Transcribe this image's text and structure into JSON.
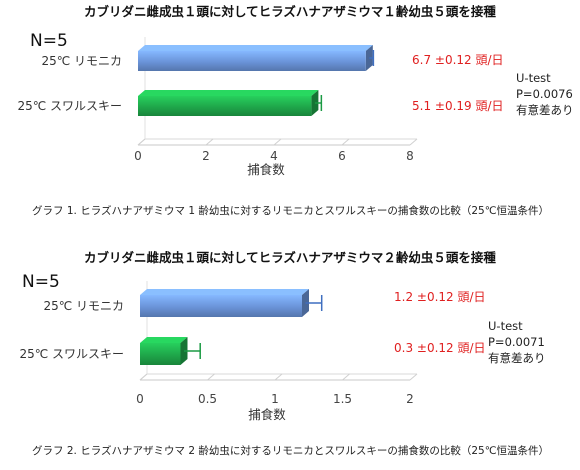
{
  "chart_data": [
    {
      "type": "bar",
      "orientation": "horizontal",
      "title": "カブリダニ雌成虫１頭に対してヒラズハナアザミウマ１齢幼虫５頭を接種",
      "n_label": "N=5",
      "categories": [
        "25℃ リモニカ",
        "25℃ スワルスキー"
      ],
      "values": [
        6.7,
        5.1
      ],
      "errors": [
        0.12,
        0.19
      ],
      "value_labels": [
        "6.7 ±0.12 頭/日",
        "5.1 ±0.19 頭/日"
      ],
      "colors": [
        "#6a93d8",
        "#1fa64a"
      ],
      "xlabel": "捕食数",
      "xlim": [
        0,
        8
      ],
      "xticks": [
        "0",
        "2",
        "4",
        "6",
        "8"
      ],
      "grid": false,
      "stats": [
        "U-test",
        "P=0.0076",
        "有意差あり"
      ],
      "caption": "グラフ 1. ヒラズハナアザミウマ 1 齢幼虫に対するリモニカとスワルスキーの捕食数の比較（25℃恒温条件）"
    },
    {
      "type": "bar",
      "orientation": "horizontal",
      "title": "カブリダニ雌成虫１頭に対してヒラズハナアザミウマ２齢幼虫５頭を接種",
      "n_label": "N=5",
      "categories": [
        "25℃ リモニカ",
        "25℃ スワルスキー"
      ],
      "values": [
        1.2,
        0.3
      ],
      "errors": [
        0.12,
        0.12
      ],
      "value_labels": [
        "1.2 ±0.12 頭/日",
        "0.3 ±0.12 頭/日"
      ],
      "colors": [
        "#6a93d8",
        "#1fa64a"
      ],
      "xlabel": "捕食数",
      "xlim": [
        0,
        2
      ],
      "xticks": [
        "0",
        "0.5",
        "1",
        "1.5",
        "2"
      ],
      "grid": false,
      "stats": [
        "U-test",
        "P=0.0071",
        "有意差あり"
      ],
      "caption": "グラフ 2. ヒラズハナアザミウマ 2 齢幼虫に対するリモニカとスワルスキーの捕食数の比較（25℃恒温条件）"
    }
  ]
}
